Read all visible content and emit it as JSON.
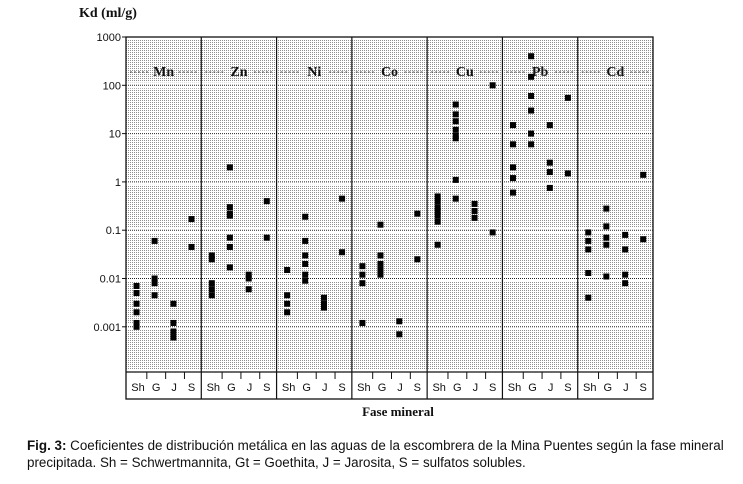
{
  "chart_data": {
    "type": "scatter",
    "title": "",
    "ylabel": "Kd (ml/g)",
    "xlabel": "Fase mineral",
    "y_scale": "log",
    "ylim": [
      0.0001,
      1000
    ],
    "y_ticks": [
      {
        "value": 1000,
        "label": "1000"
      },
      {
        "value": 100,
        "label": "100"
      },
      {
        "value": 10,
        "label": "10"
      },
      {
        "value": 1,
        "label": "1"
      },
      {
        "value": 0.1,
        "label": "0.1"
      },
      {
        "value": 0.01,
        "label": "0.01"
      },
      {
        "value": 0.001,
        "label": "0.001"
      }
    ],
    "grid": "dotted bands between decades",
    "phases": [
      "Sh",
      "G",
      "J",
      "S"
    ],
    "metals": [
      {
        "name": "Mn",
        "points": {
          "Sh": [
            0.007,
            0.005,
            0.003,
            0.002,
            0.0012,
            0.001
          ],
          "G": [
            0.06,
            0.01,
            0.008,
            0.0045
          ],
          "J": [
            0.003,
            0.0012,
            0.0008,
            0.0006
          ],
          "S": [
            0.17,
            0.045
          ]
        }
      },
      {
        "name": "Zn",
        "points": {
          "Sh": [
            0.03,
            0.025,
            0.008,
            0.006,
            0.0045
          ],
          "G": [
            2,
            0.3,
            0.22,
            0.2,
            0.07,
            0.045,
            0.017
          ],
          "J": [
            0.012,
            0.01,
            0.006
          ],
          "S": [
            0.4,
            0.07
          ]
        }
      },
      {
        "name": "Ni",
        "points": {
          "Sh": [
            0.015,
            0.0045,
            0.003,
            0.002
          ],
          "G": [
            0.19,
            0.06,
            0.03,
            0.02,
            0.012,
            0.009
          ],
          "J": [
            0.004,
            0.003,
            0.0025
          ],
          "S": [
            0.45,
            0.035
          ]
        }
      },
      {
        "name": "Co",
        "points": {
          "Sh": [
            0.018,
            0.012,
            0.008,
            0.0012
          ],
          "G": [
            0.13,
            0.03,
            0.02,
            0.015,
            0.012
          ],
          "J": [
            0.0013,
            0.0007
          ],
          "S": [
            0.22,
            0.025
          ]
        }
      },
      {
        "name": "Cu",
        "points": {
          "Sh": [
            0.5,
            0.4,
            0.3,
            0.25,
            0.2,
            0.15,
            0.05
          ],
          "G": [
            40,
            25,
            18,
            12,
            9,
            8,
            1.1,
            0.45
          ],
          "J": [
            0.35,
            0.25,
            0.18
          ],
          "S": [
            100,
            0.09
          ]
        }
      },
      {
        "name": "Pb",
        "points": {
          "Sh": [
            15,
            6,
            2,
            1.2,
            0.6
          ],
          "G": [
            400,
            150,
            60,
            30,
            10,
            6
          ],
          "J": [
            15,
            2.5,
            1.6,
            0.75
          ],
          "S": [
            55,
            1.5
          ]
        }
      },
      {
        "name": "Cd",
        "points": {
          "Sh": [
            0.09,
            0.06,
            0.04,
            0.013,
            0.004
          ],
          "G": [
            0.28,
            0.12,
            0.07,
            0.05,
            0.011
          ],
          "J": [
            0.08,
            0.04,
            0.012,
            0.008
          ],
          "S": [
            1.4,
            0.065
          ]
        }
      }
    ]
  },
  "caption": {
    "label": "Fig. 3:",
    "text": " Coeficientes de distribución metálica en las aguas de la escombrera de la Mina Puentes según la fase mineral precipitada. Sh = Schwertmannita, Gt = Goethita, J = Jarosita, S = sulfatos solubles."
  }
}
